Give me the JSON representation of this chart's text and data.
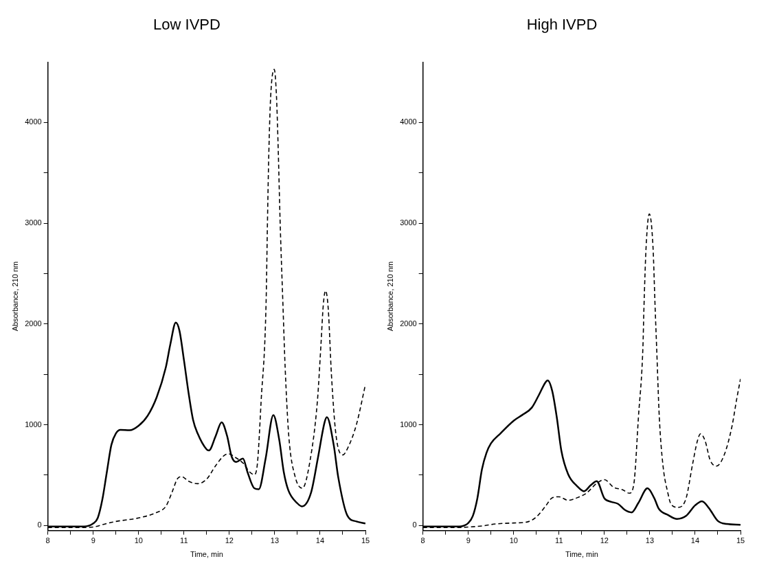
{
  "chart_data": [
    {
      "type": "line",
      "title": "Low IVPD",
      "xlabel": "Time, min",
      "ylabel": "Absorbance, 210 nm",
      "xlim": [
        8,
        15
      ],
      "ylim": [
        -50,
        4600
      ],
      "xticks": [
        8,
        {
          "value": 8.5,
          "label": null
        },
        9,
        {
          "value": 9.5,
          "label": null
        },
        10,
        {
          "value": 10.5,
          "label": null
        },
        11,
        {
          "value": 11.5,
          "label": null
        },
        12,
        {
          "value": 12.5,
          "label": null
        },
        13,
        {
          "value": 13.5,
          "label": null
        },
        14,
        {
          "value": 14.5,
          "label": null
        },
        15
      ],
      "yticks": [
        0,
        {
          "value": 500,
          "label": null
        },
        1000,
        {
          "value": 1500,
          "label": null
        },
        2000,
        {
          "value": 2500,
          "label": null
        },
        3000,
        {
          "value": 3500,
          "label": null
        },
        4000
      ],
      "grid": false,
      "legend": false,
      "marker": "none",
      "series": [
        {
          "color": "#000000",
          "line_style": "solid",
          "x": [
            8,
            8.8,
            9.0,
            9.1,
            9.2,
            9.3,
            9.4,
            9.5,
            9.6,
            9.8,
            10.0,
            10.2,
            10.4,
            10.6,
            10.7,
            10.82,
            10.9,
            11.0,
            11.1,
            11.2,
            11.3,
            11.5,
            11.55,
            11.7,
            11.83,
            11.95,
            12.05,
            12.15,
            12.3,
            12.4,
            12.55,
            12.65,
            12.8,
            12.97,
            13.1,
            13.2,
            13.3,
            13.5,
            13.6,
            13.8,
            13.95,
            14.1,
            14.15,
            14.3,
            14.4,
            14.6,
            14.8,
            15
          ],
          "values": [
            -10,
            -10,
            20,
            75,
            255,
            530,
            800,
            915,
            950,
            945,
            990,
            1090,
            1275,
            1570,
            1800,
            2015,
            1935,
            1640,
            1320,
            1050,
            915,
            755,
            745,
            890,
            1025,
            890,
            685,
            630,
            665,
            530,
            370,
            360,
            665,
            1095,
            850,
            530,
            350,
            220,
            190,
            325,
            665,
            1025,
            1075,
            800,
            480,
            100,
            40,
            20
          ]
        },
        {
          "color": "#000000",
          "line_style": "dashed",
          "x": [
            8,
            8.8,
            9.0,
            9.3,
            9.5,
            10.0,
            10.4,
            10.6,
            10.75,
            10.85,
            10.95,
            11.1,
            11.3,
            11.5,
            11.7,
            11.9,
            12.0,
            12.1,
            12.3,
            12.45,
            12.55,
            12.62,
            12.7,
            12.81,
            12.84,
            12.87,
            12.91,
            12.99,
            13.04,
            13.08,
            13.12,
            13.18,
            13.23,
            13.31,
            13.45,
            13.61,
            13.77,
            13.94,
            14.02,
            14.07,
            14.12,
            14.18,
            14.25,
            14.35,
            14.5,
            14.6,
            14.8,
            15
          ],
          "values": [
            -20,
            -20,
            -15,
            20,
            40,
            75,
            130,
            190,
            345,
            460,
            485,
            440,
            415,
            460,
            595,
            700,
            710,
            685,
            620,
            530,
            505,
            620,
            1230,
            2210,
            3005,
            3690,
            4250,
            4527,
            4250,
            3690,
            3005,
            2210,
            1570,
            890,
            485,
            370,
            620,
            1230,
            1800,
            2185,
            2330,
            2150,
            1500,
            900,
            700,
            760,
            1000,
            1400
          ]
        }
      ]
    },
    {
      "type": "line",
      "title": "High IVPD",
      "xlabel": "Time, min",
      "ylabel": "Absorbance, 210 nm",
      "xlim": [
        8,
        15
      ],
      "ylim": [
        -50,
        4600
      ],
      "xticks": [
        8,
        {
          "value": 8.5,
          "label": null
        },
        9,
        {
          "value": 9.5,
          "label": null
        },
        10,
        {
          "value": 10.5,
          "label": null
        },
        11,
        {
          "value": 11.5,
          "label": null
        },
        12,
        {
          "value": 12.5,
          "label": null
        },
        13,
        {
          "value": 13.5,
          "label": null
        },
        14,
        {
          "value": 14.5,
          "label": null
        },
        15
      ],
      "yticks": [
        0,
        {
          "value": 500,
          "label": null
        },
        1000,
        {
          "value": 1500,
          "label": null
        },
        2000,
        {
          "value": 2500,
          "label": null
        },
        3000,
        {
          "value": 3500,
          "label": null
        },
        4000
      ],
      "grid": false,
      "legend": false,
      "marker": "none",
      "series": [
        {
          "color": "#000000",
          "line_style": "solid",
          "x": [
            8,
            8.8,
            9.0,
            9.1,
            9.2,
            9.3,
            9.4,
            9.5,
            9.7,
            10.0,
            10.2,
            10.4,
            10.55,
            10.7,
            10.75,
            10.85,
            10.95,
            11.05,
            11.2,
            11.4,
            11.55,
            11.7,
            11.83,
            12.0,
            12.15,
            12.3,
            12.45,
            12.6,
            12.75,
            12.95,
            13.1,
            13.2,
            13.4,
            13.6,
            13.8,
            14.0,
            14.15,
            14.3,
            14.5,
            14.7,
            15
          ],
          "values": [
            -10,
            -10,
            25,
            95,
            270,
            555,
            720,
            815,
            910,
            1040,
            1100,
            1170,
            1290,
            1420,
            1440,
            1335,
            1075,
            745,
            510,
            390,
            340,
            400,
            440,
            270,
            235,
            215,
            155,
            130,
            225,
            370,
            270,
            165,
            105,
            65,
            95,
            200,
            240,
            175,
            45,
            15,
            7
          ]
        },
        {
          "color": "#000000",
          "line_style": "dashed",
          "x": [
            8,
            8.8,
            9.0,
            9.3,
            9.6,
            10.0,
            10.3,
            10.5,
            10.7,
            10.85,
            11.0,
            11.2,
            11.45,
            11.6,
            11.85,
            12.0,
            12.2,
            12.4,
            12.55,
            12.65,
            12.75,
            12.85,
            12.87,
            12.92,
            12.99,
            13.07,
            13.12,
            13.15,
            13.21,
            13.29,
            13.4,
            13.47,
            13.63,
            13.8,
            13.94,
            14.05,
            14.12,
            14.22,
            14.33,
            14.47,
            14.64,
            14.81,
            14.92,
            15
          ],
          "values": [
            -20,
            -20,
            -15,
            -5,
            15,
            25,
            35,
            85,
            190,
            275,
            285,
            250,
            285,
            320,
            425,
            455,
            380,
            355,
            320,
            415,
            1075,
            1785,
            2137,
            2774,
            3092,
            2774,
            2137,
            1785,
            1075,
            600,
            320,
            210,
            180,
            270,
            600,
            840,
            910,
            840,
            650,
            590,
            700,
            980,
            1265,
            1455
          ]
        }
      ]
    }
  ]
}
